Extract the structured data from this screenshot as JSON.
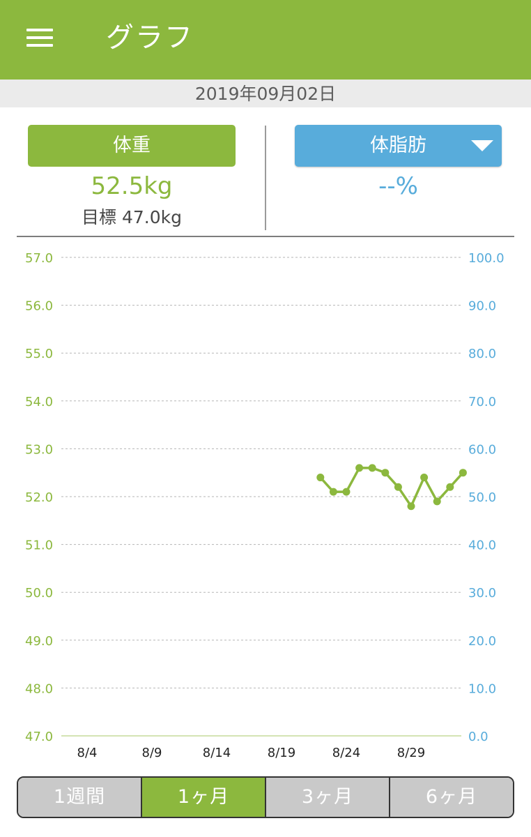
{
  "header": {
    "title": "グラフ",
    "menu_icon": "hamburger-menu-icon"
  },
  "date": "2019年09月02日",
  "weight": {
    "label": "体重",
    "value": "52.5kg",
    "goal": "目標 47.0kg"
  },
  "body_fat": {
    "label": "体脂肪",
    "value": "--%",
    "dropdown_icon": "triangle-down-icon"
  },
  "colors": {
    "accent_green": "#8cb83e",
    "accent_blue": "#58acdb",
    "tab_inactive": "#c9c9c9"
  },
  "periods": [
    {
      "label": "1週間",
      "active": false
    },
    {
      "label": "1ヶ月",
      "active": true
    },
    {
      "label": "3ヶ月",
      "active": false
    },
    {
      "label": "6ヶ月",
      "active": false
    }
  ],
  "chart_data": {
    "type": "line",
    "x_tick_labels": [
      "8/4",
      "8/9",
      "8/14",
      "8/19",
      "8/24",
      "8/29"
    ],
    "ylim_left": [
      47.0,
      57.0
    ],
    "ylim_right": [
      0.0,
      100.0
    ],
    "y_left_ticks": [
      "57.0",
      "56.0",
      "55.0",
      "54.0",
      "53.0",
      "52.0",
      "51.0",
      "50.0",
      "49.0",
      "48.0",
      "47.0"
    ],
    "y_right_ticks": [
      "100.0",
      "90.0",
      "80.0",
      "70.0",
      "60.0",
      "50.0",
      "40.0",
      "30.0",
      "20.0",
      "10.0",
      "0.0"
    ],
    "grid": true,
    "series": [
      {
        "color": "#8cb83e",
        "axis": "left",
        "x": [
          "8/22",
          "8/23",
          "8/24",
          "8/25",
          "8/26",
          "8/27",
          "8/28",
          "8/29",
          "8/30",
          "8/31",
          "9/1",
          "9/2"
        ],
        "values": [
          52.4,
          52.1,
          52.1,
          52.6,
          52.6,
          52.5,
          52.2,
          51.8,
          52.4,
          51.9,
          52.2,
          52.5
        ]
      }
    ]
  }
}
